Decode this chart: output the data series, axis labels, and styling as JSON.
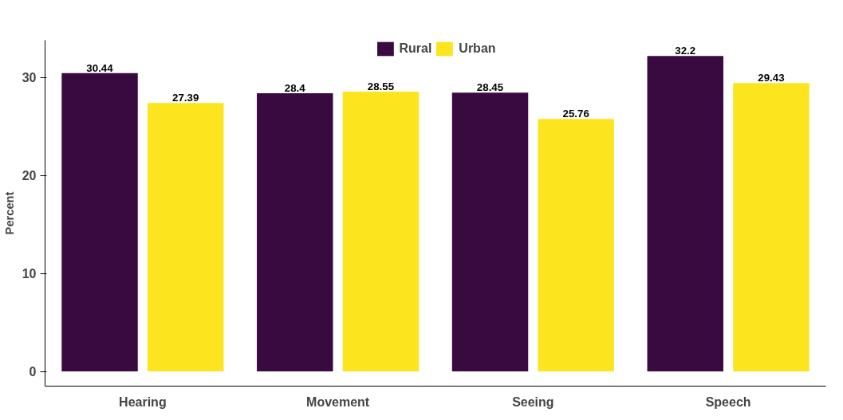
{
  "chart_data": {
    "type": "bar",
    "ylabel": "Percent",
    "categories": [
      "Hearing",
      "Movement",
      "Seeing",
      "Speech"
    ],
    "series": [
      {
        "name": "Rural",
        "color": "#380a3f",
        "values": [
          30.44,
          28.4,
          28.45,
          32.2
        ]
      },
      {
        "name": "Urban",
        "color": "#fce51f",
        "values": [
          27.39,
          28.55,
          25.76,
          29.43
        ]
      }
    ],
    "ylim": [
      -1.5,
      33.8
    ],
    "yticks": [
      0,
      10,
      20,
      30
    ],
    "data_labels": true,
    "legend": "top",
    "grid": false
  }
}
